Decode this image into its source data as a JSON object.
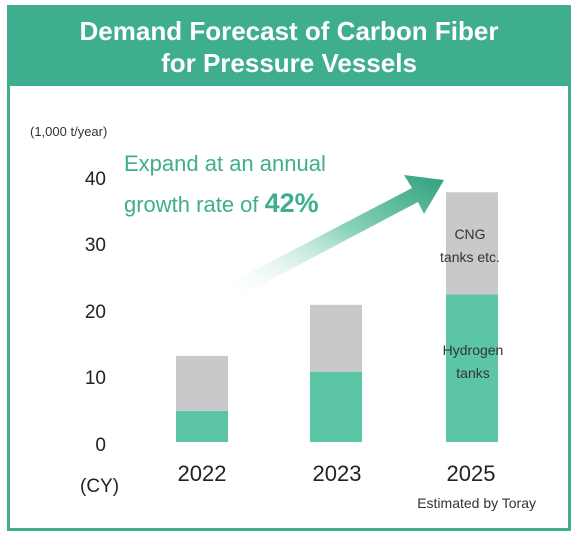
{
  "title": {
    "line1": "Demand Forecast of Carbon Fiber",
    "line2": "for Pressure Vessels"
  },
  "colors": {
    "accent": "#3fae8e",
    "hydrogen": "#5cc5a6",
    "cng": "#c9c9cb",
    "arrow_end": "#2ea07d"
  },
  "annotation": {
    "line1": "Expand at an annual",
    "line2_prefix": "growth rate of ",
    "rate": "42%"
  },
  "footnote": "Estimated by Toray",
  "chart_data": {
    "type": "bar",
    "stacked": true,
    "categories": [
      "2022",
      "2023",
      "2025"
    ],
    "series": [
      {
        "name": "Hydrogen tanks",
        "values": [
          4.7,
          10.6,
          22.3
        ]
      },
      {
        "name": "CNG tanks etc.",
        "values": [
          8.3,
          10.1,
          15.4
        ]
      }
    ],
    "series_labels": {
      "hydrogen_line1": "Hydrogen",
      "hydrogen_line2": "tanks",
      "cng_line1": "CNG",
      "cng_line2": "tanks etc."
    },
    "y_unit": "(1,000 t/year)",
    "x_unit": "(CY)",
    "yticks": [
      "40",
      "30",
      "20",
      "10",
      "0"
    ],
    "ylim": [
      0,
      40
    ],
    "grid": false
  }
}
